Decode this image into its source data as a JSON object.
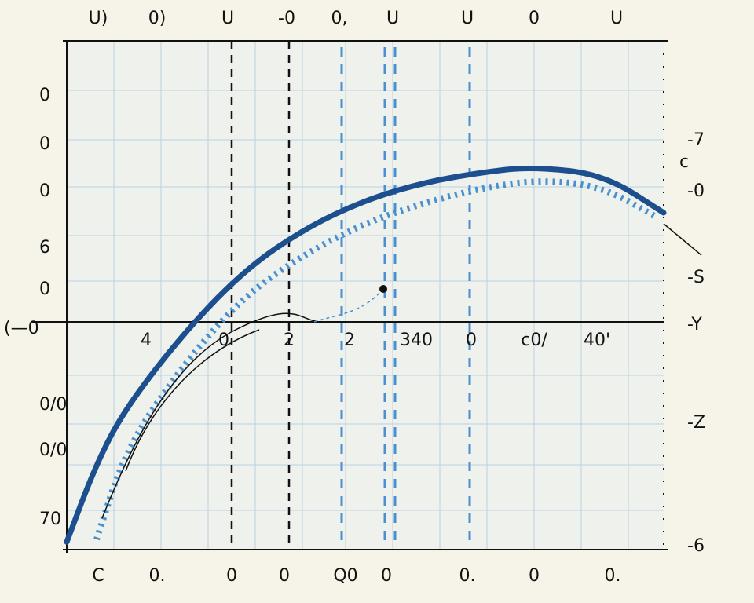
{
  "chart_data": {
    "type": "line",
    "title": "",
    "xlabel": "",
    "ylabel": "",
    "grid": true,
    "colors": {
      "background": "#eef1ec",
      "grid": "#b9d3e3",
      "solid_series": "#1d4f8f",
      "dotted_series": "#4a90cf",
      "axis": "#111111"
    },
    "top_tick_labels": [
      "U)",
      "0)",
      "U",
      "-0",
      "0,",
      "U",
      "U",
      "0",
      "U"
    ],
    "left_tick_labels": [
      "0",
      "0",
      "0",
      "6",
      "0",
      "(—0",
      "0/0",
      "0/0",
      "70"
    ],
    "right_tick_labels": [
      "-7",
      "c",
      "-0",
      "-S",
      "-Y",
      "-Z",
      "-6"
    ],
    "bottom_tick_labels": [
      "C",
      "0.",
      "0",
      "0",
      "Q0",
      "0",
      "0.",
      "0",
      "0."
    ],
    "axis_labels": [
      "4",
      "0",
      "2",
      "2",
      "340",
      "0",
      "c0/",
      "40'"
    ],
    "series": [
      {
        "style": "solid",
        "x": [
          0,
          5,
          10,
          20,
          30,
          40,
          50,
          60,
          70,
          78,
          90,
          100
        ],
        "y": [
          1.5,
          17,
          28,
          43,
          55,
          63,
          68.5,
          72,
          74,
          75,
          73.5,
          66
        ]
      },
      {
        "style": "dotted",
        "x": [
          5,
          10,
          20,
          30,
          40,
          50,
          60,
          70,
          80,
          90,
          99
        ],
        "y": [
          2,
          20,
          37,
          50,
          58,
          64,
          68,
          71,
          72.5,
          71,
          65
        ]
      }
    ]
  }
}
